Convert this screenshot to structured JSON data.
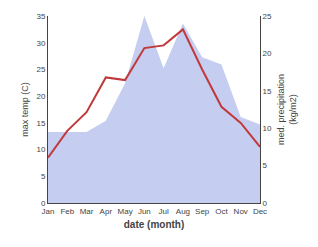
{
  "chart_data": {
    "type": "line",
    "categories": [
      "Jan",
      "Feb",
      "Mar",
      "Apr",
      "May",
      "Jun",
      "Jul",
      "Aug",
      "Sep",
      "Oct",
      "Nov",
      "Dec"
    ],
    "xlabel": "date (month)",
    "ylabel": "max temp (C)",
    "y2label": "med. precipitation\n(kg/m2)",
    "series": [
      {
        "type": "area",
        "axis": "y2",
        "color": "#c5cdf0",
        "values": [
          9.5,
          9.5,
          9.5,
          11.0,
          16.0,
          25.0,
          18.0,
          24.0,
          19.5,
          18.5,
          11.5,
          10.5
        ]
      },
      {
        "type": "line",
        "color": "#c0393b",
        "values": [
          8.5,
          13.5,
          17.0,
          23.5,
          23.0,
          29.0,
          29.5,
          32.5,
          25.0,
          18.0,
          15.0,
          10.5
        ]
      }
    ],
    "ylim": [
      0,
      35
    ],
    "yticks": [
      0,
      5,
      10,
      15,
      20,
      25,
      30,
      35
    ],
    "y2lim": [
      0,
      25
    ],
    "y2ticks": [
      0,
      5,
      10,
      15,
      20,
      25
    ],
    "grid": false
  }
}
